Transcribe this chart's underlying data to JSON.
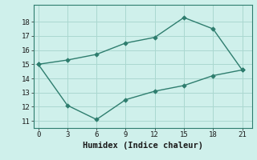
{
  "xlabel": "Humidex (Indice chaleur)",
  "x": [
    0,
    3,
    6,
    9,
    12,
    15,
    18,
    21
  ],
  "y_upper": [
    15.0,
    15.3,
    15.7,
    16.5,
    16.9,
    18.3,
    17.5,
    14.6
  ],
  "y_lower": [
    15.0,
    12.1,
    11.1,
    12.5,
    13.1,
    13.5,
    14.2,
    14.6
  ],
  "line_color": "#2e7d6e",
  "bg_color": "#cff0eb",
  "grid_color": "#aad8d0",
  "xlim": [
    -0.5,
    22
  ],
  "ylim": [
    10.5,
    19.2
  ],
  "xticks": [
    0,
    3,
    6,
    9,
    12,
    15,
    18,
    21
  ],
  "yticks": [
    11,
    12,
    13,
    14,
    15,
    16,
    17,
    18
  ],
  "marker": "D",
  "markersize": 2.8,
  "linewidth": 1.0,
  "tick_fontsize": 6.5,
  "xlabel_fontsize": 7.5
}
